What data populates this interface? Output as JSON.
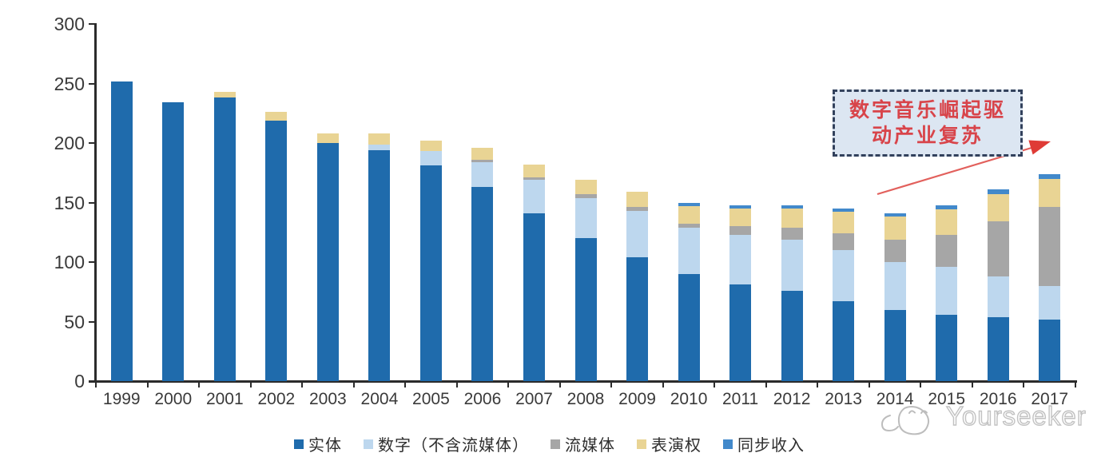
{
  "chart_data": {
    "type": "bar",
    "stacked": true,
    "categories": [
      "1999",
      "2000",
      "2001",
      "2002",
      "2003",
      "2004",
      "2005",
      "2006",
      "2007",
      "2008",
      "2009",
      "2010",
      "2011",
      "2012",
      "2013",
      "2014",
      "2015",
      "2016",
      "2017"
    ],
    "series": [
      {
        "key": "physical",
        "name": "实体",
        "color": "#1F6BAC",
        "values": [
          252,
          234,
          238,
          219,
          200,
          194,
          181,
          163,
          141,
          120,
          104,
          90,
          81,
          76,
          67,
          60,
          56,
          54,
          52
        ]
      },
      {
        "key": "digital_excl_streaming",
        "name": "数字（不含流媒体）",
        "color": "#BDD7EE",
        "values": [
          0,
          0,
          0,
          0,
          0,
          5,
          12,
          21,
          28,
          34,
          39,
          39,
          42,
          43,
          43,
          40,
          40,
          34,
          28
        ]
      },
      {
        "key": "streaming",
        "name": "流媒体",
        "color": "#A6A6A6",
        "values": [
          0,
          0,
          0,
          0,
          0,
          0,
          0,
          2,
          2,
          3,
          3,
          3,
          7,
          10,
          14,
          19,
          27,
          46,
          66
        ]
      },
      {
        "key": "performance_rights",
        "name": "表演权",
        "color": "#E9D494",
        "values": [
          0,
          0,
          5,
          7,
          8,
          9,
          9,
          10,
          11,
          12,
          13,
          15,
          15,
          16,
          18,
          19,
          21,
          23,
          24
        ]
      },
      {
        "key": "sync_revenue",
        "name": "同步收入",
        "color": "#4289CB",
        "values": [
          0,
          0,
          0,
          0,
          0,
          0,
          0,
          0,
          0,
          0,
          0,
          3,
          3,
          3,
          3,
          3,
          4,
          4,
          4
        ]
      }
    ],
    "ylim": [
      0,
      300
    ],
    "yticks": [
      0,
      50,
      100,
      150,
      200,
      250,
      300
    ],
    "grid": false,
    "legend_position": "bottom"
  },
  "annotation": {
    "lines": [
      "数字音乐崛起驱",
      "动产业复苏"
    ],
    "text_color": "#D8444A",
    "box_fill": "#DCE6F2",
    "border_color": "#32415C",
    "arrow_color": "#E04B47"
  },
  "watermark": {
    "text": "Yourseeker"
  }
}
